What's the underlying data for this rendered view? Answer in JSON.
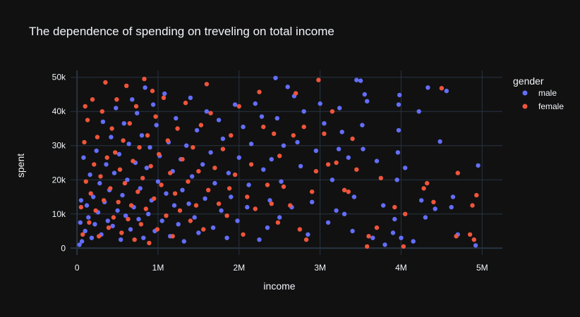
{
  "chart_data": {
    "type": "scatter",
    "title": "The dependence of spending on treveling on total income",
    "xlabel": "income",
    "ylabel": "spent",
    "xlim": [
      -80000,
      5250000
    ],
    "ylim": [
      -2000,
      52000
    ],
    "x_ticks": [
      {
        "value": 0,
        "label": "0"
      },
      {
        "value": 1000000,
        "label": "1M"
      },
      {
        "value": 2000000,
        "label": "2M"
      },
      {
        "value": 3000000,
        "label": "3M"
      },
      {
        "value": 4000000,
        "label": "4M"
      },
      {
        "value": 5000000,
        "label": "5M"
      }
    ],
    "y_ticks": [
      {
        "value": 0,
        "label": "0"
      },
      {
        "value": 10000,
        "label": "10k"
      },
      {
        "value": 20000,
        "label": "20k"
      },
      {
        "value": 30000,
        "label": "30k"
      },
      {
        "value": 40000,
        "label": "40k"
      },
      {
        "value": 50000,
        "label": "50k"
      }
    ],
    "grid": true,
    "legend": {
      "title": "gender",
      "placement": "top-right"
    },
    "colors": {
      "male": "#636efa",
      "female": "#ef553b",
      "background": "#111111",
      "grid": "#283442"
    },
    "series": [
      {
        "name": "male",
        "color": "#636efa",
        "points": [
          [
            4950000,
            24200
          ],
          [
            4920000,
            800
          ],
          [
            4700000,
            4000
          ],
          [
            4640000,
            15000
          ],
          [
            4620000,
            12000
          ],
          [
            4560000,
            46000
          ],
          [
            4480000,
            31200
          ],
          [
            4420000,
            11500
          ],
          [
            4330000,
            47000
          ],
          [
            4300000,
            9000
          ],
          [
            4250000,
            14000
          ],
          [
            4220000,
            40000
          ],
          [
            4150000,
            2000
          ],
          [
            4050000,
            23500
          ],
          [
            4000000,
            3000
          ],
          [
            3980000,
            44800
          ],
          [
            3970000,
            42000
          ],
          [
            3970000,
            34500
          ],
          [
            3960000,
            28000
          ],
          [
            3950000,
            20000
          ],
          [
            3920000,
            8500
          ],
          [
            3900000,
            4500
          ],
          [
            3800000,
            1000
          ],
          [
            3780000,
            12500
          ],
          [
            3700000,
            25500
          ],
          [
            3650000,
            3000
          ],
          [
            3580000,
            43000
          ],
          [
            3550000,
            45000
          ],
          [
            3530000,
            29000
          ],
          [
            3520000,
            36000
          ],
          [
            3500000,
            49000
          ],
          [
            3450000,
            49200
          ],
          [
            3420000,
            15000
          ],
          [
            3400000,
            5000
          ],
          [
            3350000,
            26500
          ],
          [
            3300000,
            10000
          ],
          [
            3270000,
            34000
          ],
          [
            3240000,
            41000
          ],
          [
            3230000,
            29000
          ],
          [
            3200000,
            11000
          ],
          [
            3150000,
            20000
          ],
          [
            3100000,
            7500
          ],
          [
            3050000,
            36500
          ],
          [
            3000000,
            42300
          ],
          [
            2950000,
            28500
          ],
          [
            2900000,
            13500
          ],
          [
            2850000,
            4000
          ],
          [
            2800000,
            40000
          ],
          [
            2760000,
            24000
          ],
          [
            2720000,
            31000
          ],
          [
            2680000,
            44500
          ],
          [
            2650000,
            12000
          ],
          [
            2600000,
            47200
          ],
          [
            2550000,
            30000
          ],
          [
            2520000,
            19500
          ],
          [
            2500000,
            9000
          ],
          [
            2470000,
            38000
          ],
          [
            2450000,
            49800
          ],
          [
            2400000,
            26000
          ],
          [
            2380000,
            14000
          ],
          [
            2350000,
            6000
          ],
          [
            2300000,
            23000
          ],
          [
            2280000,
            38500
          ],
          [
            2250000,
            2500
          ],
          [
            2200000,
            42300
          ],
          [
            2150000,
            30500
          ],
          [
            2120000,
            18500
          ],
          [
            2100000,
            12000
          ],
          [
            2050000,
            35500
          ],
          [
            2000000,
            26500
          ],
          [
            1980000,
            8000
          ],
          [
            1950000,
            42000
          ],
          [
            1900000,
            15000
          ],
          [
            1870000,
            22000
          ],
          [
            1850000,
            3000
          ],
          [
            1800000,
            32000
          ],
          [
            1780000,
            11000
          ],
          [
            1750000,
            37500
          ],
          [
            1700000,
            19000
          ],
          [
            1680000,
            6000
          ],
          [
            1650000,
            28000
          ],
          [
            1600000,
            40000
          ],
          [
            1580000,
            14500
          ],
          [
            1550000,
            24500
          ],
          [
            1500000,
            4500
          ],
          [
            1480000,
            34500
          ],
          [
            1450000,
            9000
          ],
          [
            1420000,
            21000
          ],
          [
            1400000,
            44000
          ],
          [
            1380000,
            13000
          ],
          [
            1350000,
            30000
          ],
          [
            1320000,
            2000
          ],
          [
            1300000,
            17000
          ],
          [
            1280000,
            26000
          ],
          [
            1250000,
            7000
          ],
          [
            1220000,
            38000
          ],
          [
            1200000,
            12500
          ],
          [
            1180000,
            22500
          ],
          [
            1150000,
            3500
          ],
          [
            1130000,
            31000
          ],
          [
            1100000,
            16000
          ],
          [
            1080000,
            45200
          ],
          [
            1050000,
            8000
          ],
          [
            1020000,
            27000
          ],
          [
            1000000,
            19500
          ],
          [
            980000,
            36000
          ],
          [
            960000,
            5000
          ],
          [
            940000,
            42000
          ],
          [
            920000,
            14000
          ],
          [
            900000,
            29500
          ],
          [
            880000,
            10000
          ],
          [
            860000,
            23500
          ],
          [
            840000,
            47000
          ],
          [
            820000,
            3000
          ],
          [
            800000,
            33000
          ],
          [
            780000,
            17500
          ],
          [
            760000,
            8500
          ],
          [
            740000,
            39500
          ],
          [
            720000,
            25000
          ],
          [
            700000,
            12000
          ],
          [
            680000,
            43500
          ],
          [
            660000,
            5500
          ],
          [
            640000,
            30500
          ],
          [
            620000,
            20000
          ],
          [
            600000,
            9500
          ],
          [
            580000,
            36500
          ],
          [
            560000,
            15500
          ],
          [
            540000,
            2500
          ],
          [
            520000,
            27500
          ],
          [
            500000,
            11000
          ],
          [
            480000,
            41000
          ],
          [
            460000,
            22000
          ],
          [
            440000,
            6500
          ],
          [
            420000,
            32500
          ],
          [
            400000,
            17000
          ],
          [
            380000,
            8000
          ],
          [
            360000,
            24500
          ],
          [
            340000,
            13500
          ],
          [
            320000,
            37000
          ],
          [
            300000,
            4000
          ],
          [
            280000,
            19000
          ],
          [
            260000,
            10500
          ],
          [
            240000,
            28500
          ],
          [
            220000,
            7000
          ],
          [
            200000,
            15000
          ],
          [
            180000,
            3000
          ],
          [
            160000,
            21500
          ],
          [
            140000,
            9000
          ],
          [
            120000,
            12500
          ],
          [
            100000,
            5000
          ],
          [
            80000,
            26500
          ],
          [
            60000,
            2000
          ],
          [
            50000,
            14000
          ],
          [
            40000,
            7500
          ],
          [
            30000,
            1000
          ]
        ]
      },
      {
        "name": "female",
        "color": "#ef553b",
        "points": [
          [
            4930000,
            15500
          ],
          [
            4900000,
            2500
          ],
          [
            4880000,
            12500
          ],
          [
            4850000,
            4000
          ],
          [
            4700000,
            22000
          ],
          [
            4680000,
            3500
          ],
          [
            4500000,
            46800
          ],
          [
            4400000,
            13500
          ],
          [
            4320000,
            19000
          ],
          [
            4280000,
            17500
          ],
          [
            4050000,
            10000
          ],
          [
            4030000,
            500
          ],
          [
            3920000,
            12000
          ],
          [
            3750000,
            20500
          ],
          [
            3700000,
            6000
          ],
          [
            3600000,
            3500
          ],
          [
            3580000,
            500
          ],
          [
            3450000,
            23000
          ],
          [
            3400000,
            32000
          ],
          [
            3350000,
            16500
          ],
          [
            3300000,
            17000
          ],
          [
            3200000,
            25000
          ],
          [
            3150000,
            40000
          ],
          [
            3100000,
            24500
          ],
          [
            3050000,
            33500
          ],
          [
            2980000,
            49200
          ],
          [
            2950000,
            22500
          ],
          [
            2900000,
            16500
          ],
          [
            2830000,
            2500
          ],
          [
            2800000,
            35500
          ],
          [
            2750000,
            5500
          ],
          [
            2700000,
            45300
          ],
          [
            2670000,
            33000
          ],
          [
            2630000,
            12500
          ],
          [
            2550000,
            18000
          ],
          [
            2500000,
            27000
          ],
          [
            2480000,
            7500
          ],
          [
            2430000,
            33500
          ],
          [
            2400000,
            13000
          ],
          [
            2350000,
            18500
          ],
          [
            2300000,
            35500
          ],
          [
            2250000,
            45700
          ],
          [
            2200000,
            11500
          ],
          [
            2150000,
            24500
          ],
          [
            2100000,
            15000
          ],
          [
            2050000,
            4000
          ],
          [
            2000000,
            41500
          ],
          [
            1950000,
            21500
          ],
          [
            1900000,
            33000
          ],
          [
            1880000,
            17500
          ],
          [
            1850000,
            9500
          ],
          [
            1800000,
            29000
          ],
          [
            1750000,
            13000
          ],
          [
            1700000,
            23500
          ],
          [
            1650000,
            39500
          ],
          [
            1620000,
            17000
          ],
          [
            1600000,
            48000
          ],
          [
            1560000,
            5500
          ],
          [
            1530000,
            36000
          ],
          [
            1500000,
            22500
          ],
          [
            1470000,
            12500
          ],
          [
            1430000,
            29500
          ],
          [
            1400000,
            8000
          ],
          [
            1370000,
            19500
          ],
          [
            1340000,
            42500
          ],
          [
            1300000,
            26000
          ],
          [
            1270000,
            11000
          ],
          [
            1240000,
            35000
          ],
          [
            1210000,
            16000
          ],
          [
            1180000,
            3500
          ],
          [
            1150000,
            22000
          ],
          [
            1120000,
            31500
          ],
          [
            1100000,
            9500
          ],
          [
            1070000,
            44000
          ],
          [
            1040000,
            18500
          ],
          [
            1010000,
            27500
          ],
          [
            990000,
            5500
          ],
          [
            970000,
            38500
          ],
          [
            950000,
            14500
          ],
          [
            930000,
            46000
          ],
          [
            910000,
            24000
          ],
          [
            890000,
            1500
          ],
          [
            870000,
            33000
          ],
          [
            850000,
            11500
          ],
          [
            830000,
            49500
          ],
          [
            810000,
            20500
          ],
          [
            790000,
            7000
          ],
          [
            770000,
            29500
          ],
          [
            750000,
            16500
          ],
          [
            730000,
            41500
          ],
          [
            710000,
            2500
          ],
          [
            690000,
            25500
          ],
          [
            670000,
            12500
          ],
          [
            650000,
            36500
          ],
          [
            630000,
            8500
          ],
          [
            610000,
            47500
          ],
          [
            590000,
            19000
          ],
          [
            570000,
            31500
          ],
          [
            550000,
            4500
          ],
          [
            530000,
            23000
          ],
          [
            510000,
            13500
          ],
          [
            490000,
            43500
          ],
          [
            470000,
            28000
          ],
          [
            450000,
            9000
          ],
          [
            430000,
            35000
          ],
          [
            410000,
            17500
          ],
          [
            390000,
            6000
          ],
          [
            370000,
            26500
          ],
          [
            350000,
            48500
          ],
          [
            330000,
            14000
          ],
          [
            310000,
            40000
          ],
          [
            290000,
            21000
          ],
          [
            270000,
            3500
          ],
          [
            250000,
            32500
          ],
          [
            230000,
            11000
          ],
          [
            210000,
            24500
          ],
          [
            190000,
            43500
          ],
          [
            170000,
            16000
          ],
          [
            150000,
            7500
          ],
          [
            130000,
            37500
          ],
          [
            110000,
            19500
          ],
          [
            100000,
            41500
          ],
          [
            90000,
            31000
          ],
          [
            70000,
            4000
          ],
          [
            50000,
            12000
          ]
        ]
      }
    ]
  }
}
